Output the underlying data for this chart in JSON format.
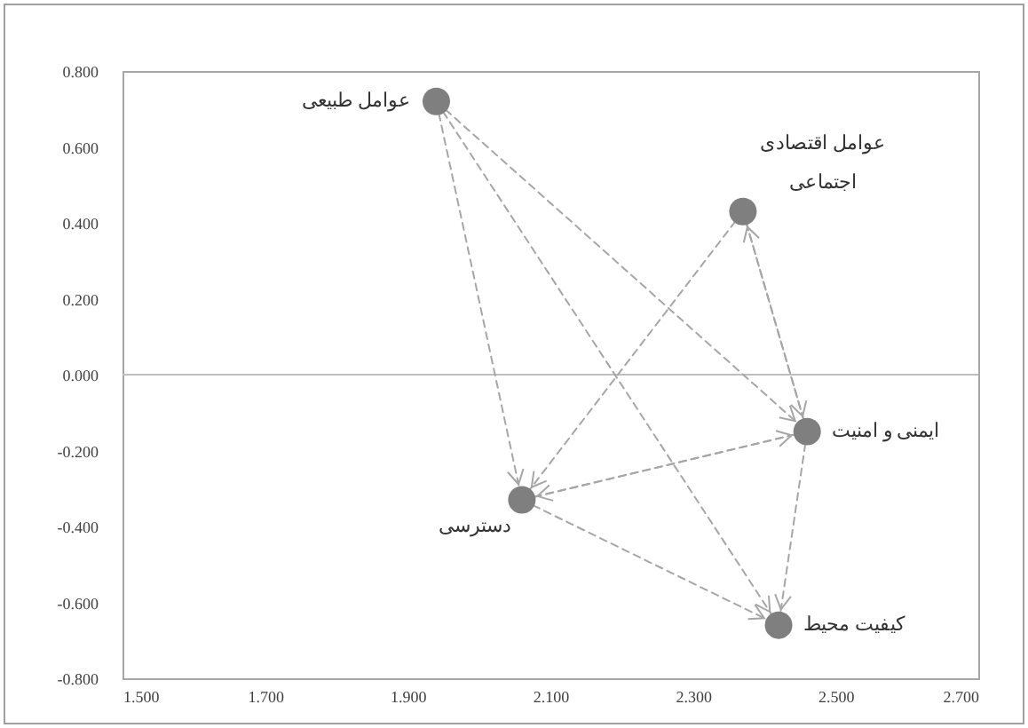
{
  "chart_data": {
    "type": "scatter",
    "xlim": [
      1.5,
      2.7
    ],
    "xticks": [
      {
        "value": 1.5,
        "label": "1.500"
      },
      {
        "value": 1.7,
        "label": "1.700"
      },
      {
        "value": 1.9,
        "label": "1.900"
      },
      {
        "value": 2.1,
        "label": "2.100"
      },
      {
        "value": 2.3,
        "label": "2.300"
      },
      {
        "value": 2.5,
        "label": "2.500"
      },
      {
        "value": 2.7,
        "label": "2.700"
      }
    ],
    "ylim": [
      -0.8,
      0.8
    ],
    "yticks": [
      {
        "value": -0.8,
        "label": "-0.800"
      },
      {
        "value": -0.6,
        "label": "-0.600"
      },
      {
        "value": -0.4,
        "label": "-0.400"
      },
      {
        "value": -0.2,
        "label": "-0.200"
      },
      {
        "value": 0,
        "label": "0.000"
      },
      {
        "value": 0.2,
        "label": "0.200"
      },
      {
        "value": 0.4,
        "label": "0.400"
      },
      {
        "value": 0.6,
        "label": "0.600"
      },
      {
        "value": 0.8,
        "label": "0.800"
      }
    ],
    "grid": false,
    "ref_lines": [
      {
        "axis": "y",
        "value": 0,
        "color": "#bfbfbf"
      }
    ],
    "series": [
      {
        "marker": "circle",
        "color": "#7f7f7f",
        "x": [
          1.94,
          2.37,
          2.46,
          2.06,
          2.42
        ],
        "values": [
          0.72,
          0.43,
          -0.15,
          -0.33,
          -0.66
        ]
      },
      {
        "type": "line",
        "line_style": "dashed",
        "color": "#a6a6a6",
        "x": [
          1.94,
          2.46
        ],
        "values": [
          0.72,
          -0.15
        ]
      },
      {
        "type": "line",
        "line_style": "dashed",
        "color": "#a6a6a6",
        "x": [
          1.94,
          2.06
        ],
        "values": [
          0.72,
          -0.33
        ]
      },
      {
        "type": "line",
        "line_style": "dashed",
        "color": "#a6a6a6",
        "x": [
          1.94,
          2.42
        ],
        "values": [
          0.72,
          -0.66
        ]
      },
      {
        "type": "line",
        "line_style": "dashed",
        "color": "#a6a6a6",
        "x": [
          2.37,
          2.06
        ],
        "values": [
          0.43,
          -0.33
        ]
      },
      {
        "type": "line",
        "line_style": "dashed",
        "color": "#a6a6a6",
        "x": [
          2.37,
          2.46
        ],
        "values": [
          0.43,
          -0.15
        ]
      },
      {
        "type": "line",
        "line_style": "dashed",
        "color": "#a6a6a6",
        "x": [
          2.46,
          2.37
        ],
        "values": [
          -0.15,
          0.43
        ]
      },
      {
        "type": "line",
        "line_style": "dashed",
        "color": "#a6a6a6",
        "x": [
          2.46,
          2.06
        ],
        "values": [
          -0.15,
          -0.33
        ]
      },
      {
        "type": "line",
        "line_style": "dashed",
        "color": "#a6a6a6",
        "x": [
          2.06,
          2.46
        ],
        "values": [
          -0.33,
          -0.15
        ]
      },
      {
        "type": "line",
        "line_style": "dashed",
        "color": "#a6a6a6",
        "x": [
          2.06,
          2.42
        ],
        "values": [
          -0.33,
          -0.66
        ]
      },
      {
        "type": "line",
        "line_style": "dashed",
        "color": "#a6a6a6",
        "x": [
          2.46,
          2.42
        ],
        "values": [
          -0.15,
          -0.66
        ]
      }
    ],
    "annotations": [
      {
        "text": "عوامل طبیعی",
        "x": 1.94,
        "y": 0.72
      },
      {
        "text": "عوامل اقتصادی\nاجتماعی",
        "x": 2.37,
        "y": 0.43
      },
      {
        "text": "ایمنی و امنیت",
        "x": 2.46,
        "y": -0.15
      },
      {
        "text": "دسترسی",
        "x": 2.06,
        "y": -0.33
      },
      {
        "text": "کیفیت محیط",
        "x": 2.42,
        "y": -0.66
      }
    ]
  }
}
